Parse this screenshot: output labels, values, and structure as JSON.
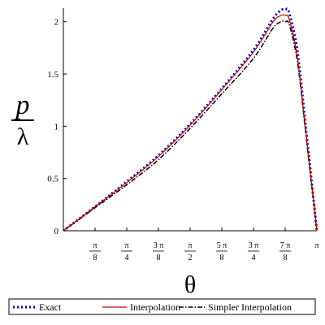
{
  "chart_data": {
    "type": "line",
    "title": "",
    "xlabel": "θ",
    "ylabel_numerator": "p",
    "ylabel_denominator": "λ",
    "xlim": [
      0,
      3.14159
    ],
    "ylim": [
      0,
      2.13
    ],
    "x_ticks": [
      {
        "value": 0.3927,
        "num": "π",
        "den": "8"
      },
      {
        "value": 0.7854,
        "num": "π",
        "den": "4"
      },
      {
        "value": 1.1781,
        "num": "3 π",
        "den": "8"
      },
      {
        "value": 1.5708,
        "num": "π",
        "den": "2"
      },
      {
        "value": 1.9635,
        "num": "5 π",
        "den": "8"
      },
      {
        "value": 2.3562,
        "num": "3 π",
        "den": "4"
      },
      {
        "value": 2.7489,
        "num": "7 π",
        "den": "8"
      },
      {
        "value": 3.1416,
        "num": "π",
        "den": ""
      }
    ],
    "y_ticks": [
      {
        "value": 0.5,
        "label": "0.5"
      },
      {
        "value": 1.0,
        "label": "1"
      },
      {
        "value": 1.5,
        "label": "1.5"
      },
      {
        "value": 2.0,
        "label": "2"
      }
    ],
    "x": [
      0,
      0.3927,
      0.7854,
      1.1781,
      1.5708,
      1.9635,
      2.3562,
      2.6,
      2.7,
      2.75,
      2.8,
      2.9,
      3.0,
      3.1416
    ],
    "series": [
      {
        "name": "Exact",
        "color": "#0000cc",
        "style": "dotted",
        "values": [
          0,
          0.23,
          0.47,
          0.72,
          1.02,
          1.36,
          1.73,
          2.03,
          2.11,
          2.12,
          2.08,
          1.72,
          1.02,
          0
        ]
      },
      {
        "name": "Interpolation",
        "color": "#cc0000",
        "style": "solid",
        "values": [
          0,
          0.23,
          0.46,
          0.71,
          1.01,
          1.35,
          1.71,
          2.0,
          2.06,
          2.06,
          2.02,
          1.66,
          0.98,
          0
        ]
      },
      {
        "name": "Simpler Interpolation",
        "color": "#000000",
        "style": "dashdot",
        "values": [
          0,
          0.22,
          0.44,
          0.68,
          0.98,
          1.31,
          1.65,
          1.94,
          2.0,
          2.0,
          1.97,
          1.62,
          0.96,
          0
        ]
      }
    ],
    "grid": false,
    "legend_position": "bottom"
  }
}
